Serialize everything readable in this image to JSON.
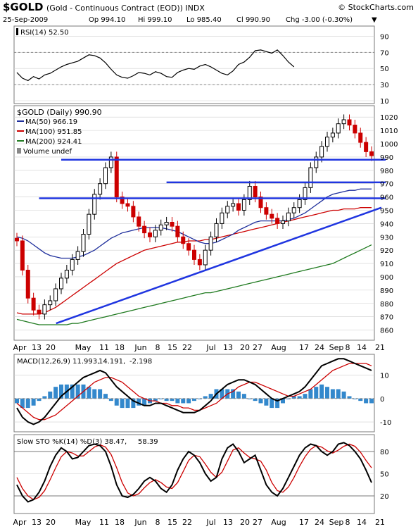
{
  "header": {
    "symbol": "$GOLD",
    "description": "(Gold - Continuous Contract (EOD)) INDX",
    "watermark": "© StockCharts.com",
    "date": "25-Sep-2009",
    "open": "Op 994.10",
    "high": "Hi 999.10",
    "low": "Lo 985.40",
    "close": "Cl 990.90",
    "change": "Chg -3.00 (-0.30%)",
    "change_marker": "▼"
  },
  "colors": {
    "up": "#000000",
    "down": "#cc0000",
    "ma50": "#1f2f9c",
    "ma100": "#cc0000",
    "ma200": "#1f7a1f",
    "trendline": "#1f35e0",
    "macd_hist": "#3388cc",
    "panel_border": "#7a7a7a",
    "grid": "#cfcfcf"
  },
  "x_labels": [
    "Apr",
    "13",
    "20",
    "May",
    "11",
    "18",
    "Jun",
    "8",
    "15",
    "22",
    "Jul",
    "13",
    "20",
    "27",
    "Aug",
    "17",
    "24",
    "Sep",
    "8",
    "14",
    "21"
  ],
  "chart_data": [
    {
      "type": "line",
      "panel": "rsi",
      "legend": "RSI(14) 52.50",
      "ylim": [
        10,
        100
      ],
      "y_ticks": [
        90,
        70,
        50,
        30,
        10
      ],
      "reference_lines": [
        70,
        30
      ],
      "values": [
        45,
        38,
        35,
        40,
        37,
        42,
        44,
        48,
        52,
        55,
        57,
        59,
        63,
        67,
        66,
        63,
        57,
        49,
        42,
        39,
        38,
        41,
        45,
        44,
        42,
        46,
        44,
        40,
        39,
        45,
        48,
        50,
        49,
        53,
        55,
        52,
        48,
        44,
        42,
        47,
        55,
        58,
        64,
        72,
        73,
        71,
        69,
        73,
        66,
        58,
        52
      ]
    },
    {
      "type": "candlestick",
      "panel": "price",
      "legend": [
        "$GOLD (Daily) 990.90",
        "MA(50) 966.19",
        "MA(100) 951.85",
        "MA(200) 924.41",
        "Volume undef"
      ],
      "ylim": [
        855,
        1027
      ],
      "y_ticks": [
        1020,
        1010,
        1000,
        990,
        980,
        970,
        960,
        950,
        940,
        930,
        920,
        910,
        900,
        890,
        880,
        870,
        860
      ],
      "closes": [
        927,
        905,
        884,
        875,
        872,
        879,
        882,
        891,
        899,
        905,
        913,
        919,
        932,
        947,
        962,
        970,
        982,
        990,
        960,
        955,
        953,
        945,
        938,
        933,
        930,
        935,
        939,
        941,
        938,
        930,
        925,
        920,
        913,
        909,
        920,
        930,
        940,
        948,
        953,
        955,
        950,
        958,
        968,
        960,
        952,
        947,
        944,
        940,
        942,
        948,
        952,
        958,
        967,
        982,
        990,
        998,
        1005,
        1008,
        1015,
        1018,
        1014,
        1008,
        1001,
        994,
        991
      ],
      "support_resistance": [
        988,
        971,
        959
      ],
      "trendline": {
        "start_index": 2,
        "start_value": 865,
        "end_index": 64,
        "end_value": 952
      },
      "ma50": [
        930,
        929,
        927,
        924,
        921,
        918,
        916,
        915,
        914,
        914,
        914,
        915,
        916,
        918,
        920,
        923,
        926,
        929,
        931,
        933,
        934,
        935,
        936,
        937,
        937,
        937,
        937,
        936,
        935,
        934,
        932,
        930,
        928,
        926,
        925,
        925,
        926,
        928,
        930,
        932,
        935,
        937,
        939,
        941,
        942,
        942,
        942,
        942,
        942,
        943,
        944,
        946,
        948,
        951,
        954,
        957,
        960,
        962,
        963,
        964,
        965,
        965,
        966,
        966,
        966
      ],
      "ma100": [
        873,
        872,
        872,
        872,
        872,
        873,
        875,
        877,
        880,
        883,
        886,
        889,
        892,
        895,
        898,
        901,
        904,
        907,
        910,
        912,
        914,
        916,
        918,
        920,
        921,
        922,
        923,
        924,
        925,
        926,
        926,
        927,
        927,
        927,
        928,
        928,
        929,
        930,
        931,
        932,
        933,
        934,
        935,
        936,
        937,
        938,
        939,
        940,
        941,
        942,
        943,
        944,
        945,
        946,
        947,
        948,
        949,
        950,
        950,
        951,
        951,
        951,
        952,
        952,
        952
      ],
      "ma200": [
        868,
        867,
        866,
        865,
        864,
        864,
        864,
        864,
        864,
        864,
        865,
        865,
        866,
        867,
        868,
        869,
        870,
        871,
        872,
        873,
        874,
        875,
        876,
        877,
        878,
        879,
        880,
        881,
        882,
        883,
        884,
        885,
        886,
        887,
        888,
        888,
        889,
        890,
        891,
        892,
        893,
        894,
        895,
        896,
        897,
        898,
        899,
        900,
        901,
        902,
        903,
        904,
        905,
        906,
        907,
        908,
        909,
        910,
        912,
        914,
        916,
        918,
        920,
        922,
        924
      ]
    },
    {
      "type": "line",
      "panel": "macd",
      "legend": [
        "MACD(12,26,9) 11.993,",
        "14.191,",
        "-2.198"
      ],
      "ylim": [
        -13,
        18
      ],
      "y_ticks": [
        10,
        0,
        -10
      ],
      "reference_lines": [
        0
      ],
      "macd": [
        -4,
        -8,
        -10,
        -11,
        -10,
        -8,
        -5,
        -2,
        1,
        3,
        5,
        7,
        9,
        10,
        11,
        12,
        11,
        8,
        5,
        3,
        1,
        -1,
        -2,
        -3,
        -3,
        -2,
        -2,
        -3,
        -4,
        -5,
        -6,
        -6,
        -6,
        -5,
        -3,
        -1,
        2,
        4,
        6,
        7,
        8,
        8,
        7,
        6,
        4,
        2,
        0,
        -1,
        0,
        1,
        2,
        3,
        5,
        8,
        11,
        14,
        15,
        16,
        17,
        17,
        16,
        15,
        14,
        13,
        12
      ],
      "signal": [
        -2,
        -4,
        -6,
        -8,
        -9,
        -9,
        -8,
        -7,
        -5,
        -3,
        -1,
        1,
        3,
        5,
        7,
        8,
        9,
        9,
        8,
        7,
        5,
        3,
        1,
        0,
        -1,
        -1,
        -2,
        -2,
        -3,
        -3,
        -4,
        -4,
        -5,
        -5,
        -4,
        -3,
        -2,
        0,
        2,
        3,
        5,
        6,
        7,
        7,
        6,
        5,
        4,
        3,
        2,
        1,
        1,
        2,
        3,
        4,
        6,
        8,
        10,
        12,
        13,
        14,
        15,
        15,
        15,
        15,
        14
      ],
      "histogram": [
        -2,
        -4,
        -4,
        -3,
        -1,
        1,
        3,
        5,
        6,
        6,
        6,
        6,
        6,
        5,
        4,
        4,
        2,
        -1,
        -3,
        -4,
        -4,
        -4,
        -3,
        -3,
        -2,
        -1,
        0,
        -1,
        -1,
        -2,
        -2,
        -2,
        -1,
        0,
        1,
        2,
        4,
        4,
        4,
        4,
        3,
        2,
        0,
        -1,
        -2,
        -3,
        -4,
        -4,
        -2,
        0,
        1,
        1,
        2,
        4,
        5,
        6,
        5,
        4,
        4,
        3,
        1,
        0,
        -1,
        -2,
        -2
      ]
    },
    {
      "type": "line",
      "panel": "stochastic",
      "legend": [
        "Slow STO %K(14) %D(3) 38.47,",
        "58.39"
      ],
      "ylim": [
        0,
        100
      ],
      "y_ticks": [
        80,
        50,
        20
      ],
      "reference_lines": [
        80,
        20
      ],
      "k": [
        35,
        20,
        12,
        15,
        25,
        40,
        60,
        75,
        85,
        80,
        70,
        72,
        80,
        88,
        90,
        88,
        80,
        60,
        35,
        20,
        18,
        22,
        30,
        40,
        45,
        40,
        30,
        25,
        35,
        55,
        70,
        80,
        75,
        65,
        50,
        40,
        45,
        70,
        85,
        90,
        80,
        65,
        70,
        75,
        55,
        35,
        25,
        20,
        30,
        45,
        60,
        75,
        85,
        90,
        88,
        80,
        75,
        80,
        90,
        92,
        88,
        80,
        70,
        55,
        38
      ],
      "d": [
        45,
        30,
        20,
        15,
        18,
        27,
        42,
        58,
        73,
        80,
        78,
        74,
        74,
        80,
        86,
        89,
        86,
        76,
        58,
        38,
        24,
        20,
        23,
        31,
        38,
        42,
        38,
        32,
        30,
        38,
        53,
        68,
        75,
        73,
        63,
        52,
        45,
        52,
        67,
        82,
        85,
        78,
        72,
        70,
        67,
        55,
        38,
        27,
        25,
        32,
        45,
        60,
        73,
        83,
        88,
        86,
        81,
        78,
        82,
        87,
        90,
        87,
        79,
        68,
        58
      ]
    }
  ]
}
